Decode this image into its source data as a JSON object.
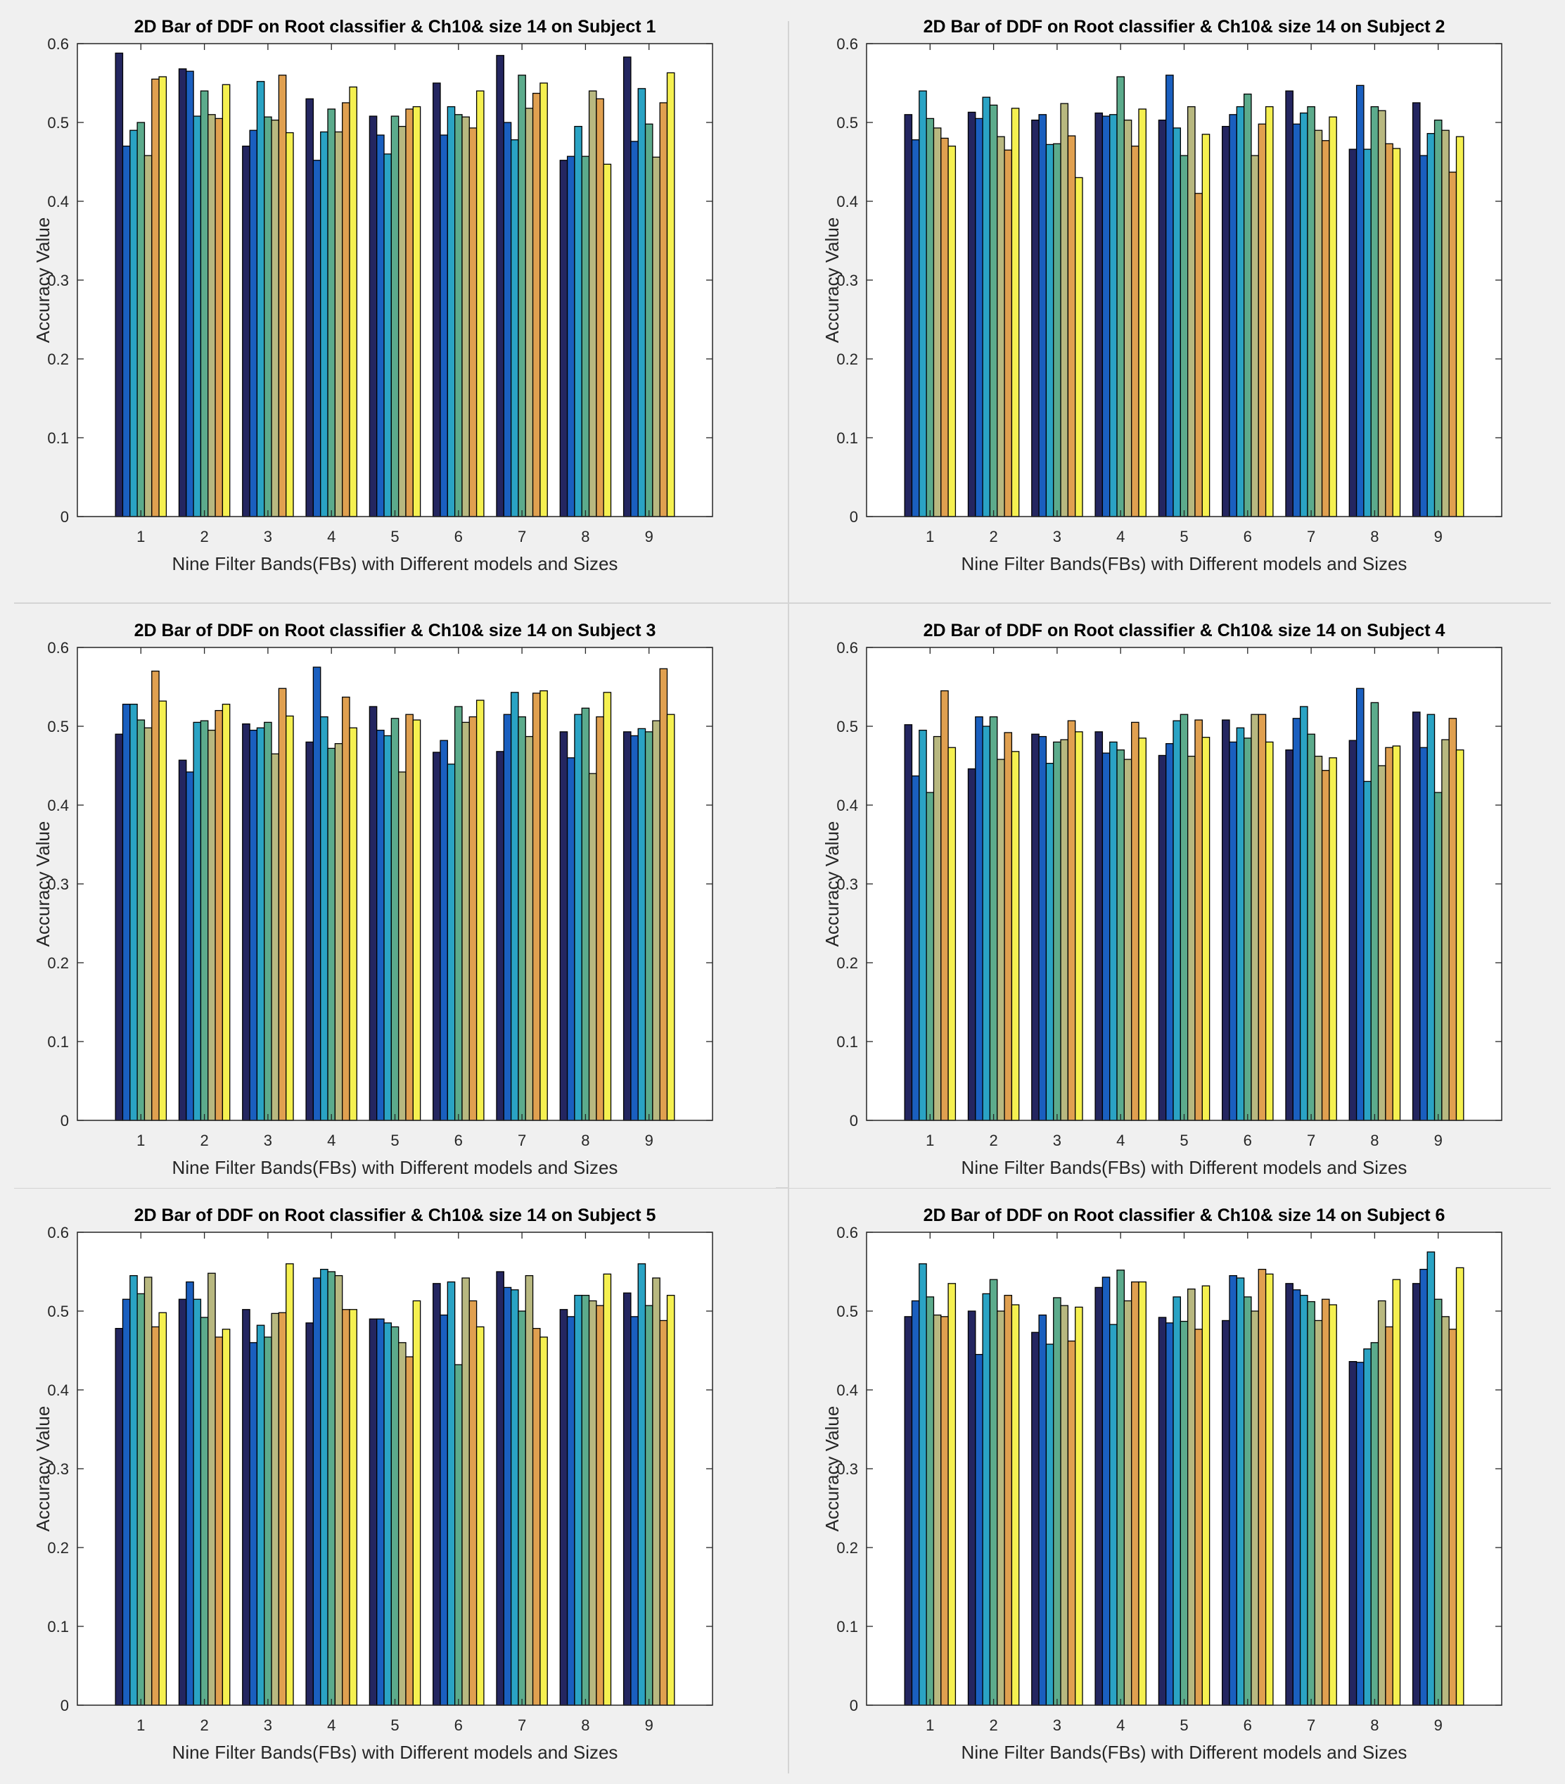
{
  "figure": {
    "background": "#f0f0f0",
    "plot_background": "#ffffff",
    "bar_edge_color": "#000000",
    "bar_colors": [
      "#242660",
      "#1a5fbf",
      "#2aa3c4",
      "#5cab8c",
      "#b8b880",
      "#e0a050",
      "#f5f050"
    ]
  },
  "chart_data": [
    {
      "type": "bar",
      "title": "2D Bar of DDF on Root classifier & Ch10& size 14 on Subject 1",
      "xlabel": "Nine Filter Bands(FBs) with Different models and Sizes",
      "ylabel": "Accuracy Value",
      "ylim": [
        0,
        0.6
      ],
      "yticks": [
        "0",
        "0.1",
        "0.2",
        "0.3",
        "0.4",
        "0.5",
        "0.6"
      ],
      "grid": false,
      "categories": [
        "1",
        "2",
        "3",
        "4",
        "5",
        "6",
        "7",
        "8",
        "9"
      ],
      "values": [
        [
          0.588,
          0.47,
          0.49,
          0.5,
          0.458,
          0.555,
          0.558
        ],
        [
          0.568,
          0.565,
          0.508,
          0.54,
          0.51,
          0.505,
          0.548
        ],
        [
          0.47,
          0.49,
          0.552,
          0.507,
          0.503,
          0.56,
          0.487
        ],
        [
          0.53,
          0.452,
          0.488,
          0.517,
          0.488,
          0.525,
          0.545
        ],
        [
          0.508,
          0.484,
          0.46,
          0.508,
          0.495,
          0.517,
          0.52
        ],
        [
          0.55,
          0.484,
          0.52,
          0.51,
          0.507,
          0.493,
          0.54
        ],
        [
          0.585,
          0.5,
          0.478,
          0.56,
          0.518,
          0.537,
          0.55
        ],
        [
          0.452,
          0.457,
          0.495,
          0.457,
          0.54,
          0.53,
          0.447
        ],
        [
          0.583,
          0.476,
          0.543,
          0.498,
          0.456,
          0.525,
          0.563
        ]
      ]
    },
    {
      "type": "bar",
      "title": "2D Bar of DDF on Root classifier & Ch10& size 14 on Subject 2",
      "xlabel": "Nine Filter Bands(FBs) with Different models and Sizes",
      "ylabel": "Accuracy Value",
      "ylim": [
        0,
        0.6
      ],
      "yticks": [
        "0",
        "0.1",
        "0.2",
        "0.3",
        "0.4",
        "0.5",
        "0.6"
      ],
      "grid": false,
      "categories": [
        "1",
        "2",
        "3",
        "4",
        "5",
        "6",
        "7",
        "8",
        "9"
      ],
      "values": [
        [
          0.51,
          0.478,
          0.54,
          0.505,
          0.493,
          0.48,
          0.47
        ],
        [
          0.513,
          0.505,
          0.532,
          0.522,
          0.482,
          0.465,
          0.518
        ],
        [
          0.503,
          0.51,
          0.472,
          0.473,
          0.524,
          0.483,
          0.43
        ],
        [
          0.512,
          0.508,
          0.51,
          0.558,
          0.503,
          0.47,
          0.517
        ],
        [
          0.503,
          0.56,
          0.493,
          0.458,
          0.52,
          0.41,
          0.485
        ],
        [
          0.495,
          0.51,
          0.52,
          0.536,
          0.458,
          0.498,
          0.52
        ],
        [
          0.54,
          0.498,
          0.512,
          0.52,
          0.49,
          0.477,
          0.507
        ],
        [
          0.466,
          0.547,
          0.466,
          0.52,
          0.515,
          0.473,
          0.467
        ],
        [
          0.525,
          0.458,
          0.486,
          0.503,
          0.49,
          0.437,
          0.482
        ]
      ]
    },
    {
      "type": "bar",
      "title": "2D Bar of DDF on Root classifier & Ch10& size 14 on Subject 3",
      "xlabel": "Nine Filter Bands(FBs) with Different models and Sizes",
      "ylabel": "Accuracy Value",
      "ylim": [
        0,
        0.6
      ],
      "yticks": [
        "0",
        "0.1",
        "0.2",
        "0.3",
        "0.4",
        "0.5",
        "0.6"
      ],
      "grid": false,
      "categories": [
        "1",
        "2",
        "3",
        "4",
        "5",
        "6",
        "7",
        "8",
        "9"
      ],
      "values": [
        [
          0.49,
          0.528,
          0.528,
          0.508,
          0.498,
          0.57,
          0.532
        ],
        [
          0.457,
          0.442,
          0.505,
          0.507,
          0.495,
          0.52,
          0.528
        ],
        [
          0.503,
          0.495,
          0.498,
          0.505,
          0.465,
          0.548,
          0.513
        ],
        [
          0.48,
          0.575,
          0.512,
          0.472,
          0.478,
          0.537,
          0.498
        ],
        [
          0.525,
          0.495,
          0.488,
          0.51,
          0.442,
          0.515,
          0.508
        ],
        [
          0.467,
          0.482,
          0.452,
          0.525,
          0.505,
          0.512,
          0.533
        ],
        [
          0.468,
          0.515,
          0.543,
          0.512,
          0.487,
          0.542,
          0.545
        ],
        [
          0.493,
          0.46,
          0.515,
          0.523,
          0.44,
          0.512,
          0.543
        ],
        [
          0.493,
          0.488,
          0.497,
          0.493,
          0.507,
          0.573,
          0.515
        ]
      ]
    },
    {
      "type": "bar",
      "title": "2D Bar of DDF on Root classifier & Ch10& size 14 on Subject 4",
      "xlabel": "Nine Filter Bands(FBs) with Different models and Sizes",
      "ylabel": "Accuracy Value",
      "ylim": [
        0,
        0.6
      ],
      "yticks": [
        "0",
        "0.1",
        "0.2",
        "0.3",
        "0.4",
        "0.5",
        "0.6"
      ],
      "grid": false,
      "categories": [
        "1",
        "2",
        "3",
        "4",
        "5",
        "6",
        "7",
        "8",
        "9"
      ],
      "values": [
        [
          0.502,
          0.437,
          0.495,
          0.416,
          0.487,
          0.545,
          0.473
        ],
        [
          0.446,
          0.512,
          0.5,
          0.512,
          0.458,
          0.492,
          0.468
        ],
        [
          0.49,
          0.487,
          0.453,
          0.48,
          0.483,
          0.507,
          0.493
        ],
        [
          0.493,
          0.466,
          0.48,
          0.47,
          0.458,
          0.505,
          0.485
        ],
        [
          0.463,
          0.478,
          0.507,
          0.515,
          0.462,
          0.508,
          0.486
        ],
        [
          0.508,
          0.48,
          0.498,
          0.485,
          0.515,
          0.515,
          0.48
        ],
        [
          0.47,
          0.51,
          0.525,
          0.49,
          0.462,
          0.444,
          0.46
        ],
        [
          0.482,
          0.548,
          0.43,
          0.53,
          0.45,
          0.473,
          0.475
        ],
        [
          0.518,
          0.473,
          0.515,
          0.416,
          0.483,
          0.51,
          0.47
        ]
      ]
    },
    {
      "type": "bar",
      "title": "2D Bar of DDF on Root classifier & Ch10& size 14 on Subject 5",
      "xlabel": "Nine Filter Bands(FBs) with Different models and Sizes",
      "ylabel": "Accuracy Value",
      "ylim": [
        0,
        0.6
      ],
      "yticks": [
        "0",
        "0.1",
        "0.2",
        "0.3",
        "0.4",
        "0.5",
        "0.6"
      ],
      "grid": false,
      "categories": [
        "1",
        "2",
        "3",
        "4",
        "5",
        "6",
        "7",
        "8",
        "9"
      ],
      "values": [
        [
          0.478,
          0.515,
          0.545,
          0.522,
          0.543,
          0.48,
          0.498
        ],
        [
          0.515,
          0.537,
          0.515,
          0.492,
          0.548,
          0.467,
          0.477
        ],
        [
          0.502,
          0.46,
          0.482,
          0.467,
          0.497,
          0.498,
          0.56
        ],
        [
          0.485,
          0.542,
          0.553,
          0.55,
          0.545,
          0.502,
          0.502
        ],
        [
          0.49,
          0.49,
          0.485,
          0.48,
          0.46,
          0.442,
          0.513
        ],
        [
          0.535,
          0.495,
          0.537,
          0.432,
          0.542,
          0.513,
          0.48
        ],
        [
          0.55,
          0.53,
          0.527,
          0.5,
          0.545,
          0.478,
          0.467
        ],
        [
          0.502,
          0.493,
          0.52,
          0.52,
          0.513,
          0.507,
          0.547
        ],
        [
          0.523,
          0.493,
          0.56,
          0.507,
          0.542,
          0.488,
          0.52
        ]
      ]
    },
    {
      "type": "bar",
      "title": "2D Bar of DDF on Root classifier & Ch10& size 14 on Subject 6",
      "xlabel": "Nine Filter Bands(FBs) with Different models and Sizes",
      "ylabel": "Accuracy Value",
      "ylim": [
        0,
        0.6
      ],
      "yticks": [
        "0",
        "0.1",
        "0.2",
        "0.3",
        "0.4",
        "0.5",
        "0.6"
      ],
      "grid": false,
      "categories": [
        "1",
        "2",
        "3",
        "4",
        "5",
        "6",
        "7",
        "8",
        "9"
      ],
      "values": [
        [
          0.493,
          0.513,
          0.56,
          0.518,
          0.495,
          0.493,
          0.535
        ],
        [
          0.5,
          0.445,
          0.522,
          0.54,
          0.5,
          0.52,
          0.508
        ],
        [
          0.473,
          0.495,
          0.458,
          0.517,
          0.507,
          0.462,
          0.505
        ],
        [
          0.53,
          0.543,
          0.483,
          0.552,
          0.513,
          0.537,
          0.537
        ],
        [
          0.492,
          0.485,
          0.518,
          0.487,
          0.528,
          0.477,
          0.532
        ],
        [
          0.488,
          0.545,
          0.542,
          0.518,
          0.5,
          0.553,
          0.547
        ],
        [
          0.535,
          0.527,
          0.52,
          0.512,
          0.488,
          0.515,
          0.508
        ],
        [
          0.436,
          0.435,
          0.452,
          0.46,
          0.513,
          0.48,
          0.54
        ],
        [
          0.535,
          0.553,
          0.575,
          0.515,
          0.493,
          0.477,
          0.555
        ]
      ]
    }
  ]
}
